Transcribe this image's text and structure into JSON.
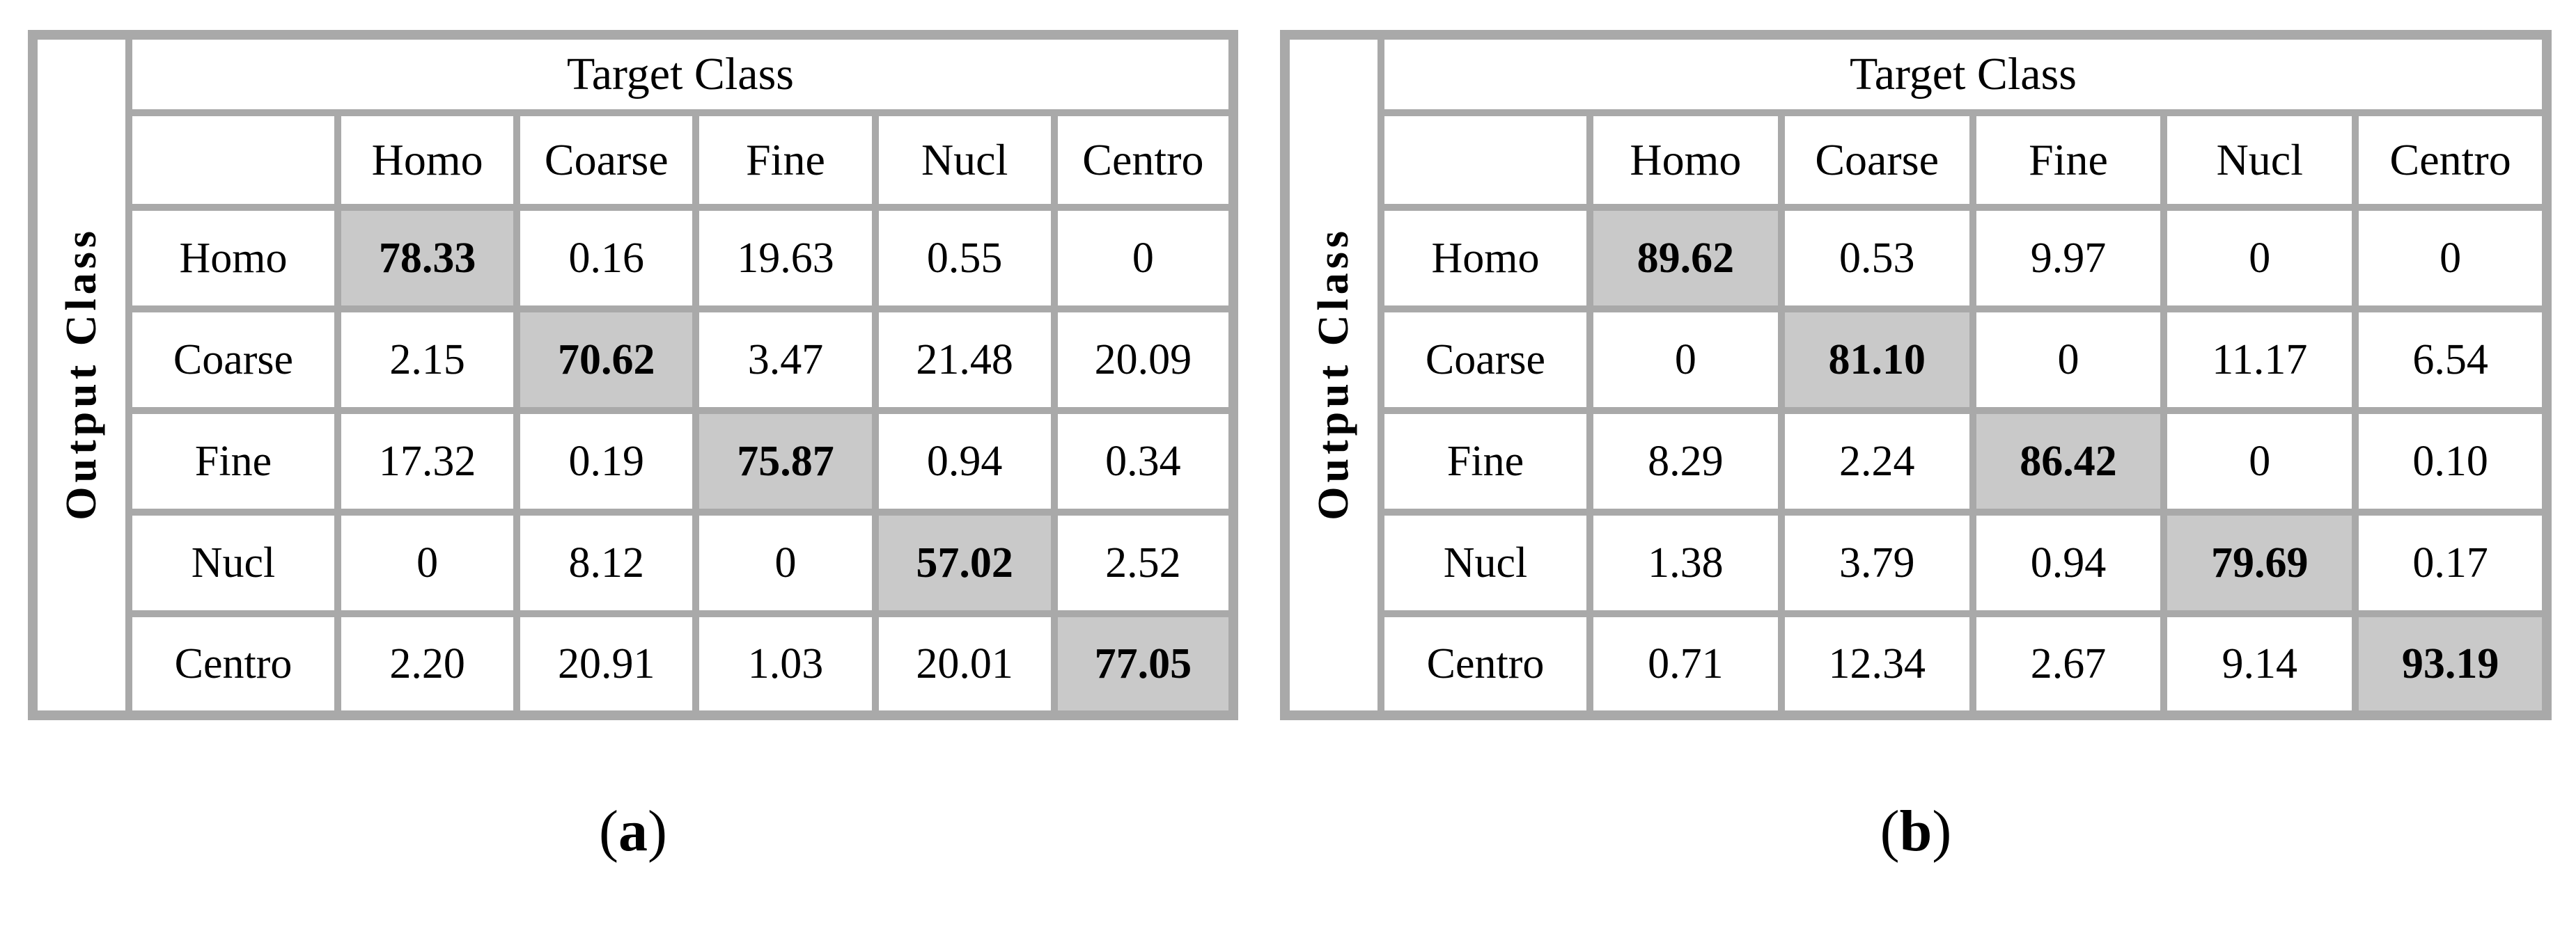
{
  "figure": {
    "colors": {
      "grid": "#a9a9a9",
      "diagonal_fill": "#c9c9c9",
      "text": "#000000",
      "background": "#ffffff"
    },
    "panels": [
      {
        "caption_open": "(",
        "caption_letter": "a",
        "caption_close": ")",
        "table": {
          "col_axis_label": "Target Class",
          "row_axis_label": "Output Class",
          "col_headers": [
            "Homo",
            "Coarse",
            "Fine",
            "Nucl",
            "Centro"
          ],
          "row_headers": [
            "Homo",
            "Coarse",
            "Fine",
            "Nucl",
            "Centro"
          ],
          "rows": [
            [
              "78.33",
              "0.16",
              "19.63",
              "0.55",
              "0"
            ],
            [
              "2.15",
              "70.62",
              "3.47",
              "21.48",
              "20.09"
            ],
            [
              "17.32",
              "0.19",
              "75.87",
              "0.94",
              "0.34"
            ],
            [
              "0",
              "8.12",
              "0",
              "57.02",
              "2.52"
            ],
            [
              "2.20",
              "20.91",
              "1.03",
              "20.01",
              "77.05"
            ]
          ]
        }
      },
      {
        "caption_open": "(",
        "caption_letter": "b",
        "caption_close": ")",
        "table": {
          "col_axis_label": "Target Class",
          "row_axis_label": "Output Class",
          "col_headers": [
            "Homo",
            "Coarse",
            "Fine",
            "Nucl",
            "Centro"
          ],
          "row_headers": [
            "Homo",
            "Coarse",
            "Fine",
            "Nucl",
            "Centro"
          ],
          "rows": [
            [
              "89.62",
              "0.53",
              "9.97",
              "0",
              "0"
            ],
            [
              "0",
              "81.10",
              "0",
              "11.17",
              "6.54"
            ],
            [
              "8.29",
              "2.24",
              "86.42",
              "0",
              "0.10"
            ],
            [
              "1.38",
              "3.79",
              "0.94",
              "79.69",
              "0.17"
            ],
            [
              "0.71",
              "12.34",
              "2.67",
              "9.14",
              "93.19"
            ]
          ]
        }
      }
    ]
  },
  "chart_data": [
    {
      "type": "heatmap",
      "title": "Confusion matrix (a)",
      "xlabel": "Target Class",
      "ylabel": "Output Class",
      "x_categories": [
        "Homo",
        "Coarse",
        "Fine",
        "Nucl",
        "Centro"
      ],
      "y_categories": [
        "Homo",
        "Coarse",
        "Fine",
        "Nucl",
        "Centro"
      ],
      "values": [
        [
          78.33,
          0.16,
          19.63,
          0.55,
          0
        ],
        [
          2.15,
          70.62,
          3.47,
          21.48,
          20.09
        ],
        [
          17.32,
          0.19,
          75.87,
          0.94,
          0.34
        ],
        [
          0,
          8.12,
          0,
          57.02,
          2.52
        ],
        [
          2.2,
          20.91,
          1.03,
          20.01,
          77.05
        ]
      ],
      "units": "percent",
      "diagonal_highlighted": true
    },
    {
      "type": "heatmap",
      "title": "Confusion matrix (b)",
      "xlabel": "Target Class",
      "ylabel": "Output Class",
      "x_categories": [
        "Homo",
        "Coarse",
        "Fine",
        "Nucl",
        "Centro"
      ],
      "y_categories": [
        "Homo",
        "Coarse",
        "Fine",
        "Nucl",
        "Centro"
      ],
      "values": [
        [
          89.62,
          0.53,
          9.97,
          0,
          0
        ],
        [
          0,
          81.1,
          0,
          11.17,
          6.54
        ],
        [
          8.29,
          2.24,
          86.42,
          0,
          0.1
        ],
        [
          1.38,
          3.79,
          0.94,
          79.69,
          0.17
        ],
        [
          0.71,
          12.34,
          2.67,
          9.14,
          93.19
        ]
      ],
      "units": "percent",
      "diagonal_highlighted": true
    }
  ]
}
